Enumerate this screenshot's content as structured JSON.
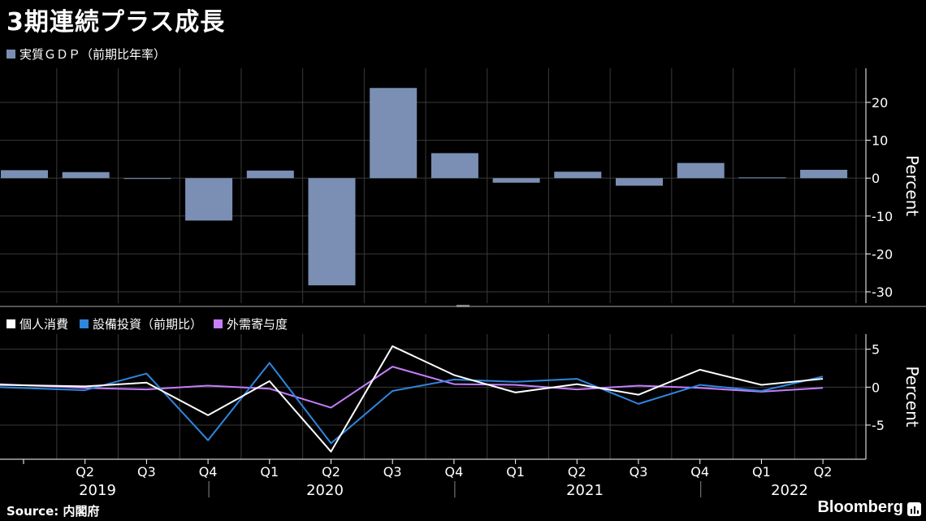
{
  "title": "3期連続プラス成長",
  "source": "Source: 内閣府",
  "brand": "Bloomberg",
  "colors": {
    "background": "#000000",
    "gdp_bar": "#7a8fb3",
    "consumption": "#ffffff",
    "capex": "#2e86de",
    "external": "#c77dff",
    "grid": "#3a3a3a"
  },
  "chart_data": [
    {
      "type": "bar",
      "legend": [
        "実質ＧＤＰ（前期比年率）"
      ],
      "ylabel": "Percent",
      "ylim": [
        -33,
        29
      ],
      "yticks": [
        20,
        10,
        0,
        -10,
        -20,
        -30
      ],
      "ytick_labels": [
        "20",
        "10",
        "0",
        "-10",
        "-20",
        "-30"
      ],
      "categories": [
        "2019Q1",
        "2019Q2",
        "2019Q3",
        "2019Q4",
        "2020Q1",
        "2020Q2",
        "2020Q3",
        "2020Q4",
        "2021Q1",
        "2021Q2",
        "2021Q3",
        "2021Q4",
        "2022Q1",
        "2022Q2"
      ],
      "series": [
        {
          "name": "実質ＧＤＰ（前期比年率）",
          "values": [
            2.1,
            1.6,
            -0.1,
            -11.2,
            2.0,
            -28.3,
            23.8,
            6.6,
            -1.2,
            1.7,
            -2.0,
            4.0,
            0.2,
            2.2
          ]
        }
      ],
      "grid": true
    },
    {
      "type": "line",
      "legend": [
        "個人消費",
        "設備投資（前期比）",
        "外需寄与度"
      ],
      "ylabel": "Percent",
      "ylim": [
        -9.5,
        7
      ],
      "yticks": [
        5,
        0,
        -5
      ],
      "ytick_labels": [
        "5",
        "0",
        "-5"
      ],
      "categories": [
        "2019Q1",
        "2019Q2",
        "2019Q3",
        "2019Q4",
        "2020Q1",
        "2020Q2",
        "2020Q3",
        "2020Q4",
        "2021Q1",
        "2021Q2",
        "2021Q3",
        "2021Q4",
        "2022Q1",
        "2022Q2"
      ],
      "xtick_labels": [
        "Q2",
        "Q3",
        "Q4",
        "Q1",
        "Q2",
        "Q3",
        "Q4",
        "Q1",
        "Q2",
        "Q3",
        "Q4",
        "Q1",
        "Q2"
      ],
      "year_labels": [
        "2019",
        "2020",
        "2021",
        "2022"
      ],
      "series": [
        {
          "name": "個人消費",
          "values": [
            0.3,
            0.1,
            0.6,
            -3.7,
            0.8,
            -8.5,
            5.4,
            1.6,
            -0.7,
            0.4,
            -1.0,
            2.3,
            0.3,
            1.1
          ]
        },
        {
          "name": "設備投資（前期比）",
          "values": [
            0.0,
            -0.4,
            1.8,
            -7.0,
            3.2,
            -7.4,
            -0.5,
            1.0,
            0.7,
            1.1,
            -2.2,
            0.3,
            -0.5,
            1.4
          ]
        },
        {
          "name": "外需寄与度",
          "values": [
            0.4,
            -0.1,
            -0.3,
            0.2,
            -0.2,
            -2.7,
            2.7,
            0.4,
            0.3,
            -0.3,
            0.2,
            -0.1,
            -0.6,
            -0.1
          ]
        }
      ],
      "grid": true
    }
  ]
}
